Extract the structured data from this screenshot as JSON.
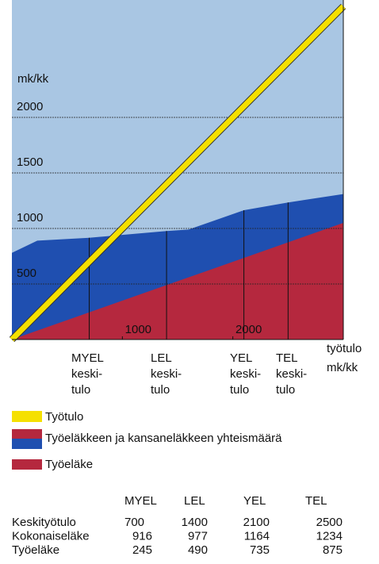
{
  "chart_data": {
    "type": "area",
    "y_unit": "mk/kk",
    "x_label": [
      "työtulo",
      "mk/kk"
    ],
    "xlim": [
      0,
      3000
    ],
    "ylim": [
      0,
      3000
    ],
    "xticks": [
      1000,
      2000
    ],
    "yticks": [
      500,
      1000,
      1500,
      2000
    ],
    "background": "#a9c6e3",
    "categories": [
      [
        "MYEL",
        "keski-",
        "tulo"
      ],
      [
        "LEL",
        "keski-",
        "tulo"
      ],
      [
        "YEL",
        "keski-",
        "tulo"
      ],
      [
        "TEL",
        "keski-",
        "tulo"
      ]
    ],
    "series": [
      {
        "name": "Työtulo",
        "color": "#f5e000",
        "style": "line",
        "x": [
          0,
          3000
        ],
        "values": [
          0,
          3000
        ]
      },
      {
        "name": "Työeläkkeen ja kansaneläkkeen yhteismäärä",
        "color": "#1f4fb0",
        "style": "area",
        "x": [
          0,
          230,
          700,
          1400,
          1600,
          2100,
          2500,
          3000
        ],
        "values": [
          780,
          890,
          916,
          977,
          990,
          1164,
          1234,
          1310
        ]
      },
      {
        "name": "Työeläke",
        "color": "#b5283e",
        "style": "area",
        "x": [
          0,
          700,
          1400,
          2100,
          2500,
          3000
        ],
        "values": [
          0,
          245,
          490,
          735,
          875,
          1050
        ]
      }
    ]
  },
  "table": {
    "columns": [
      "MYEL",
      "LEL",
      "YEL",
      "TEL"
    ],
    "rows": [
      {
        "label": "Keskityötulo",
        "values": [
          700,
          1400,
          2100,
          2500
        ]
      },
      {
        "label": "Kokonaiseläke",
        "values": [
          916,
          977,
          1164,
          1234
        ]
      },
      {
        "label": "Työeläke",
        "values": [
          245,
          490,
          735,
          875
        ]
      }
    ]
  }
}
